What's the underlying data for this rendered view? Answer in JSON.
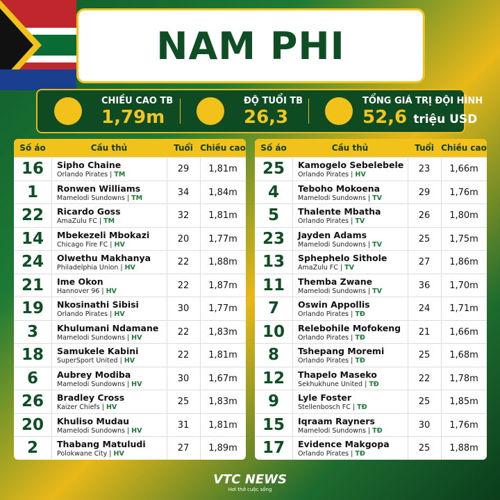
{
  "title": "NAM PHI",
  "stats": [
    {
      "label": "CHIỀU CAO TB",
      "value": "1,79m"
    },
    {
      "label": "ĐỘ TUỔI TB",
      "value": "26,3"
    },
    {
      "label": "TỔNG GIÁ TRỊ ĐỘI HÌNH",
      "value": "52,6",
      "unit": "triệu USD"
    }
  ],
  "tables": [
    {
      "header": [
        "Số áo",
        "Cầu thủ",
        "Tuổi",
        "Chiều cao"
      ],
      "rows": [
        [
          16,
          "Sipho Chaine",
          "Orlando Pirates",
          "TM",
          29,
          "1,81m"
        ],
        [
          1,
          "Ronwen Williams",
          "Mamelodi Sundowns",
          "TM",
          34,
          "1,84m"
        ],
        [
          22,
          "Ricardo Goss",
          "AmaZulu FC",
          "TM",
          32,
          "1,81m"
        ],
        [
          14,
          "Mbekezeli Mbokazi",
          "Chicago Fire FC",
          "HV",
          20,
          "1,77m"
        ],
        [
          24,
          "Olwethu Makhanya",
          "Philadelphia Union",
          "HV",
          22,
          "1,88m"
        ],
        [
          21,
          "Ime Okon",
          "Hannover 96",
          "HV",
          22,
          "1,87m"
        ],
        [
          19,
          "Nkosinathi Sibisi",
          "Orlando Pirates",
          "HV",
          30,
          "1,77m"
        ],
        [
          3,
          "Khulumani Ndamane",
          "Mamelodi Sundowns",
          "HV",
          22,
          "1,83m"
        ],
        [
          18,
          "Samukele Kabini",
          "SuperSport United",
          "HV",
          22,
          "1,81m"
        ],
        [
          6,
          "Aubrey Modiba",
          "Mamelodi Sundowns",
          "HV",
          30,
          "1,67m"
        ],
        [
          26,
          "Bradley Cross",
          "Kaizer Chiefs",
          "HV",
          25,
          "1,83m"
        ],
        [
          20,
          "Khuliso Mudau",
          "Mamelodi Sundowns",
          "HV",
          31,
          "1,81m"
        ],
        [
          2,
          "Thabang Matuludi",
          "Polokwane City",
          "HV",
          27,
          "1,89m"
        ]
      ]
    },
    {
      "header": [
        "Số áo",
        "Cầu thủ",
        "Tuổi",
        "Chiều cao"
      ],
      "rows": [
        [
          25,
          "Kamogelo Sebelebele",
          "Orlando Pirates",
          "HV",
          23,
          "1,66m"
        ],
        [
          4,
          "Teboho Mokoena",
          "Mamelodi Sundowns",
          "TV",
          29,
          "1,76m"
        ],
        [
          5,
          "Thalente Mbatha",
          "Orlando Pirates",
          "TV",
          26,
          "1,80m"
        ],
        [
          23,
          "Jayden Adams",
          "Mamelodi Sundowns",
          "TV",
          25,
          "1,75m"
        ],
        [
          13,
          "Sphephelo Sithole",
          "AmaZulu FC",
          "TV",
          27,
          "1,86m"
        ],
        [
          11,
          "Themba Zwane",
          "Mamelodi Sundowns",
          "TV",
          36,
          "1,70m"
        ],
        [
          7,
          "Oswin Appollis",
          "Orlando Pirates",
          "TĐ",
          24,
          "1,71m"
        ],
        [
          10,
          "Relebohile Mofokeng",
          "Orlando Pirates",
          "TĐ",
          21,
          "1,66m"
        ],
        [
          8,
          "Tshepang Moremi",
          "Orlando Pirates",
          "TĐ",
          25,
          "1,68m"
        ],
        [
          12,
          "Thapelo Maseko",
          "Sekhukhune United",
          "TĐ",
          22,
          "1,78m"
        ],
        [
          9,
          "Lyle Foster",
          "Stellenbosch FC",
          "TĐ",
          25,
          "1,85m"
        ],
        [
          15,
          "Iqraam Rayners",
          "Mamelodi Sundowns",
          "TĐ",
          30,
          "1,76m"
        ],
        [
          17,
          "Evidence Makgopa",
          "Orlando Pirates",
          "TĐ",
          25,
          "1,88m"
        ]
      ]
    }
  ],
  "footer": {
    "logo": "VTC NEWS",
    "tagline": "Hơi thở cuộc sống"
  }
}
